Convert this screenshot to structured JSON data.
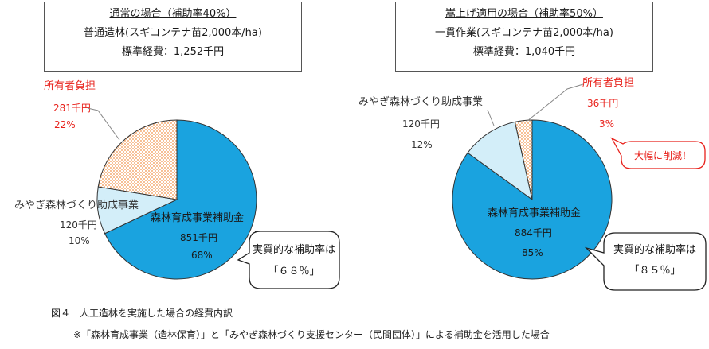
{
  "panels": [
    {
      "box": {
        "title": "通常の場合（補助率40%）",
        "line1": "普通造林(スギコンテナ苗2,000本/ha)",
        "line2": "標準経費：1,252千円"
      },
      "owner": {
        "name": "所有者負担",
        "amount": "281千円",
        "pct": "22%"
      },
      "miyagi": {
        "name": "みやぎ森林づくり助成事業",
        "amount": "120千円",
        "pct": "10%"
      },
      "forest": {
        "name": "森林育成事業補助金",
        "amount": "851千円",
        "pct": "68%"
      },
      "callout": {
        "line1": "実質的な補助率は",
        "line2": "「６８％」"
      }
    },
    {
      "box": {
        "title": "嵩上げ適用の場合（補助率50%）",
        "line1": "一貫作業(スギコンテナ苗2,000本/ha)",
        "line2": "標準経費：1,040千円"
      },
      "owner": {
        "name": "所有者負担",
        "amount": "36千円",
        "pct": "3%"
      },
      "miyagi": {
        "name": "みやぎ森林づくり助成事業",
        "amount": "120千円",
        "pct": "12%"
      },
      "forest": {
        "name": "森林育成事業補助金",
        "amount": "884千円",
        "pct": "85%"
      },
      "callout": {
        "line1": "実質的な補助率は",
        "line2": "「８５％」"
      },
      "reduction_note": "大幅に削減！"
    }
  ],
  "caption": {
    "figure": "図４　人工造林を実施した場合の経費内訳",
    "note": "※「森林育成事業（造林保育）」と「みやぎ森林づくり支援センター（民間団体）」による補助金を活用した場合"
  },
  "colors": {
    "forest": "#1aa3df",
    "miyagi": "#d3eef9",
    "owner_dots": "#f2944c",
    "red_text": "#e8211b",
    "edge": "#333333"
  },
  "chart_data": [
    {
      "type": "pie",
      "title": "通常の場合（補助率40%）",
      "unit": "千円",
      "slices": [
        {
          "label": "森林育成事業補助金",
          "value": 851,
          "percent": 68
        },
        {
          "label": "みやぎ森林づくり助成事業",
          "value": 120,
          "percent": 10
        },
        {
          "label": "所有者負担",
          "value": 281,
          "percent": 22
        }
      ],
      "total": 1252
    },
    {
      "type": "pie",
      "title": "嵩上げ適用の場合（補助率50%）",
      "unit": "千円",
      "slices": [
        {
          "label": "森林育成事業補助金",
          "value": 884,
          "percent": 85
        },
        {
          "label": "みやぎ森林づくり助成事業",
          "value": 120,
          "percent": 12
        },
        {
          "label": "所有者負担",
          "value": 36,
          "percent": 3
        }
      ],
      "total": 1040
    }
  ]
}
